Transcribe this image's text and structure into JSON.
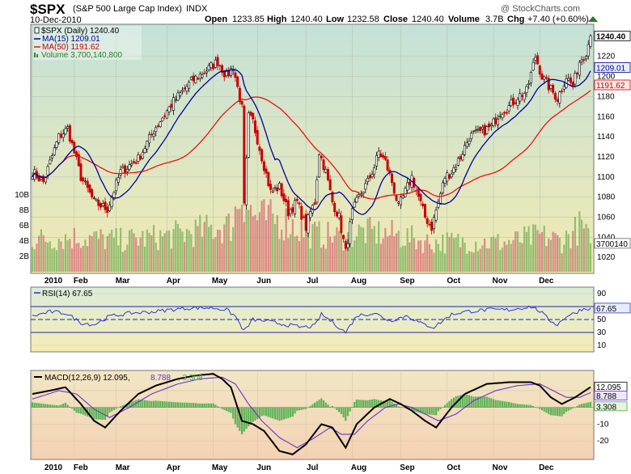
{
  "header": {
    "symbol": "$SPX",
    "name": "(S&P 500 Large Cap Index)",
    "exchange": "INDX",
    "date": "10-Dec-2010",
    "copyright": "@ StockCharts.com",
    "quote": {
      "open_label": "Open",
      "open": "1233.85",
      "high_label": "High",
      "high": "1240.40",
      "low_label": "Low",
      "low": "1232.58",
      "close_label": "Close",
      "close": "1240.40",
      "volume_label": "Volume",
      "volume": "3.7B",
      "chg_label": "Chg",
      "chg": "+7.40 (+0.60%)"
    }
  },
  "legend": {
    "price": "$SPX (Daily) 1240.40",
    "ma15": "MA(15) 1209.01",
    "ma50": "MA(50) 1191.62",
    "volume": "Volume 3,700,140,800",
    "rsi": "RSI(14) 67.65",
    "macd": "MACD(12,26,9) 12.095,",
    "macd_signal": "8.788",
    "macd_hist": ", 3.308"
  },
  "colors": {
    "up": "#000000",
    "down": "#cc0000",
    "ma15": "#000099",
    "ma50": "#ee1111",
    "vol_up": "#8ab868",
    "vol_down": "#d88080",
    "signal": "#6633cc",
    "hist": "#44aa44",
    "rsi": "#3333cc"
  },
  "chart_data": [
    {
      "type": "candlestick",
      "panel": "price",
      "y_ticks": [
        1020,
        1040,
        1060,
        1080,
        1100,
        1120,
        1140,
        1160,
        1180,
        1200,
        1220
      ],
      "ylim": [
        1004,
        1252
      ],
      "volume_ticks": [
        "2B",
        "4B",
        "6B",
        "8B",
        "10B"
      ],
      "x_labels": [
        "2010",
        "Feb",
        "Mar",
        "Apr",
        "May",
        "Jun",
        "Jul",
        "Aug",
        "Sep",
        "Oct",
        "Nov",
        "Dec"
      ],
      "last_price": "1240.40",
      "last_volume": "3700140",
      "ma15_last": "1209.01",
      "ma50_last": "1191.62",
      "close_anchors": [
        [
          0,
          1105
        ],
        [
          5,
          1095
        ],
        [
          12,
          1140
        ],
        [
          16,
          1148
        ],
        [
          22,
          1100
        ],
        [
          28,
          1075
        ],
        [
          34,
          1068
        ],
        [
          40,
          1105
        ],
        [
          48,
          1118
        ],
        [
          56,
          1150
        ],
        [
          64,
          1175
        ],
        [
          72,
          1195
        ],
        [
          80,
          1208
        ],
        [
          84,
          1215
        ],
        [
          88,
          1200
        ],
        [
          91,
          1210
        ],
        [
          95,
          1168
        ],
        [
          96,
          1070
        ],
        [
          98,
          1160
        ],
        [
          100,
          1155
        ],
        [
          104,
          1120
        ],
        [
          108,
          1085
        ],
        [
          112,
          1090
        ],
        [
          116,
          1065
        ],
        [
          120,
          1075
        ],
        [
          124,
          1050
        ],
        [
          126,
          1065
        ],
        [
          128,
          1075
        ],
        [
          130,
          1125
        ],
        [
          133,
          1105
        ],
        [
          136,
          1075
        ],
        [
          139,
          1060
        ],
        [
          142,
          1025
        ],
        [
          145,
          1065
        ],
        [
          148,
          1080
        ],
        [
          152,
          1095
        ],
        [
          155,
          1110
        ],
        [
          157,
          1125
        ],
        [
          160,
          1115
        ],
        [
          163,
          1095
        ],
        [
          166,
          1070
        ],
        [
          169,
          1085
        ],
        [
          172,
          1100
        ],
        [
          175,
          1080
        ],
        [
          178,
          1060
        ],
        [
          181,
          1050
        ],
        [
          184,
          1075
        ],
        [
          187,
          1100
        ],
        [
          190,
          1105
        ],
        [
          194,
          1120
        ],
        [
          198,
          1140
        ],
        [
          204,
          1145
        ],
        [
          208,
          1150
        ],
        [
          212,
          1165
        ],
        [
          216,
          1170
        ],
        [
          220,
          1180
        ],
        [
          224,
          1185
        ],
        [
          228,
          1220
        ],
        [
          231,
          1200
        ],
        [
          234,
          1190
        ],
        [
          238,
          1178
        ],
        [
          242,
          1200
        ],
        [
          245,
          1190
        ],
        [
          248,
          1215
        ],
        [
          251,
          1225
        ],
        [
          253,
          1240.4
        ]
      ],
      "vol_anchors": [
        [
          0,
          4.2
        ],
        [
          20,
          4.5
        ],
        [
          40,
          4.1
        ],
        [
          60,
          4.6
        ],
        [
          90,
          6.0
        ],
        [
          95,
          10.5
        ],
        [
          100,
          7.2
        ],
        [
          115,
          6.5
        ],
        [
          125,
          5.0
        ],
        [
          140,
          4.5
        ],
        [
          150,
          5.2
        ],
        [
          165,
          4.8
        ],
        [
          180,
          3.8
        ],
        [
          195,
          3.9
        ],
        [
          215,
          3.8
        ],
        [
          230,
          4.7
        ],
        [
          240,
          4.0
        ],
        [
          249,
          6.0
        ],
        [
          253,
          3.7
        ]
      ]
    },
    {
      "type": "line",
      "panel": "rsi",
      "name": "RSI(14)",
      "y_ticks": [
        10,
        30,
        50,
        70,
        90
      ],
      "ylim": [
        0,
        100
      ],
      "guides": [
        30,
        50,
        70
      ],
      "last": "67.65",
      "anchors": [
        [
          0,
          55
        ],
        [
          8,
          62
        ],
        [
          15,
          60
        ],
        [
          22,
          45
        ],
        [
          28,
          42
        ],
        [
          35,
          55
        ],
        [
          45,
          60
        ],
        [
          55,
          62
        ],
        [
          62,
          65
        ],
        [
          72,
          68
        ],
        [
          82,
          68
        ],
        [
          88,
          65
        ],
        [
          92,
          55
        ],
        [
          96,
          32
        ],
        [
          100,
          50
        ],
        [
          105,
          48
        ],
        [
          115,
          42
        ],
        [
          122,
          38
        ],
        [
          128,
          40
        ],
        [
          131,
          58
        ],
        [
          136,
          46
        ],
        [
          142,
          30
        ],
        [
          147,
          56
        ],
        [
          155,
          60
        ],
        [
          162,
          48
        ],
        [
          170,
          56
        ],
        [
          176,
          44
        ],
        [
          182,
          38
        ],
        [
          190,
          58
        ],
        [
          196,
          62
        ],
        [
          206,
          65
        ],
        [
          216,
          65
        ],
        [
          226,
          70
        ],
        [
          230,
          63
        ],
        [
          234,
          50
        ],
        [
          238,
          42
        ],
        [
          242,
          55
        ],
        [
          246,
          60
        ],
        [
          249,
          66
        ],
        [
          253,
          67.65
        ]
      ]
    },
    {
      "type": "line",
      "panel": "macd",
      "name": "MACD(12,26,9)",
      "y_ticks": [
        -20,
        -10,
        0,
        10
      ],
      "ylim": [
        -31,
        22
      ],
      "macd_last": "12.095",
      "signal_last": "8.788",
      "hist_last": "3.308",
      "macd_anchors": [
        [
          0,
          8
        ],
        [
          8,
          10
        ],
        [
          15,
          12
        ],
        [
          22,
          2
        ],
        [
          28,
          -8
        ],
        [
          33,
          -12
        ],
        [
          40,
          -2
        ],
        [
          48,
          8
        ],
        [
          56,
          13
        ],
        [
          66,
          17
        ],
        [
          74,
          19
        ],
        [
          82,
          20
        ],
        [
          86,
          17
        ],
        [
          90,
          12
        ],
        [
          95,
          -8
        ],
        [
          100,
          -10
        ],
        [
          105,
          -14
        ],
        [
          112,
          -26
        ],
        [
          118,
          -28
        ],
        [
          124,
          -22
        ],
        [
          131,
          -10
        ],
        [
          136,
          -12
        ],
        [
          142,
          -24
        ],
        [
          147,
          -10
        ],
        [
          155,
          0
        ],
        [
          162,
          5
        ],
        [
          167,
          2
        ],
        [
          172,
          -2
        ],
        [
          178,
          -8
        ],
        [
          183,
          -12
        ],
        [
          190,
          0
        ],
        [
          196,
          8
        ],
        [
          206,
          14
        ],
        [
          216,
          15
        ],
        [
          226,
          15
        ],
        [
          230,
          13
        ],
        [
          235,
          6
        ],
        [
          240,
          2
        ],
        [
          246,
          6
        ],
        [
          253,
          12.095
        ]
      ],
      "signal_anchors": [
        [
          0,
          5
        ],
        [
          12,
          10
        ],
        [
          20,
          8
        ],
        [
          28,
          -1
        ],
        [
          35,
          -6
        ],
        [
          44,
          0
        ],
        [
          54,
          8
        ],
        [
          66,
          14
        ],
        [
          76,
          17
        ],
        [
          86,
          18
        ],
        [
          92,
          14
        ],
        [
          98,
          2
        ],
        [
          104,
          -8
        ],
        [
          112,
          -18
        ],
        [
          120,
          -24
        ],
        [
          128,
          -18
        ],
        [
          135,
          -12
        ],
        [
          140,
          -16
        ],
        [
          146,
          -16
        ],
        [
          152,
          -8
        ],
        [
          160,
          0
        ],
        [
          166,
          2
        ],
        [
          172,
          0
        ],
        [
          178,
          -4
        ],
        [
          184,
          -8
        ],
        [
          192,
          -4
        ],
        [
          200,
          4
        ],
        [
          210,
          10
        ],
        [
          220,
          13
        ],
        [
          230,
          14
        ],
        [
          236,
          10
        ],
        [
          242,
          6
        ],
        [
          248,
          6
        ],
        [
          253,
          8.788
        ]
      ]
    }
  ]
}
